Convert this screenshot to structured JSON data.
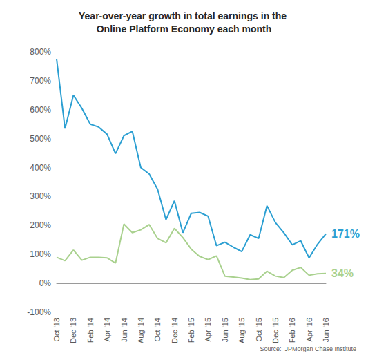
{
  "chart_data": {
    "type": "line",
    "title": "Year-over-year growth in total earnings in the Online Platform Economy each month",
    "source": "Source:  JPMorgan Chase Institute",
    "categories": [
      "Oct '13",
      null,
      "Dec '13",
      null,
      "Feb '14",
      null,
      "Apr '14",
      null,
      "Jun '14",
      null,
      "Aug '14",
      null,
      "Oct '14",
      null,
      "Dec '14",
      null,
      "Feb '15",
      null,
      "Apr '15",
      null,
      "Jun '15",
      null,
      "Aug '15",
      null,
      "Oct '15",
      null,
      "Dec '15",
      null,
      "Feb '16",
      null,
      "Apr '16",
      null,
      "Jun '16"
    ],
    "series": [
      {
        "color": "#2b9fd2",
        "values": [
          775,
          535,
          650,
          605,
          550,
          540,
          515,
          448,
          510,
          525,
          400,
          378,
          325,
          220,
          285,
          175,
          242,
          245,
          232,
          130,
          142,
          125,
          110,
          168,
          155,
          268,
          210,
          175,
          133,
          147,
          88,
          135,
          171
        ],
        "value_labels": [
          null,
          null,
          null,
          null,
          null,
          null,
          null,
          null,
          null,
          null,
          null,
          null,
          null,
          null,
          null,
          null,
          null,
          null,
          null,
          null,
          null,
          null,
          null,
          null,
          null,
          null,
          null,
          null,
          null,
          null,
          null,
          null,
          "171%"
        ]
      },
      {
        "color": "#a9d18e",
        "values": [
          90,
          78,
          115,
          80,
          90,
          90,
          88,
          70,
          205,
          175,
          185,
          203,
          155,
          140,
          190,
          158,
          118,
          93,
          82,
          95,
          25,
          22,
          18,
          13,
          15,
          42,
          25,
          20,
          45,
          55,
          28,
          33,
          34
        ],
        "value_labels": [
          null,
          null,
          null,
          null,
          null,
          null,
          null,
          null,
          null,
          null,
          null,
          null,
          null,
          null,
          null,
          null,
          null,
          null,
          null,
          null,
          null,
          null,
          null,
          null,
          null,
          null,
          null,
          null,
          null,
          null,
          null,
          null,
          "34%"
        ]
      }
    ],
    "ylim": [
      -100,
      800
    ],
    "yticks": [
      {
        "value": -100,
        "label": "-100%"
      },
      {
        "value": 0,
        "label": "0%"
      },
      {
        "value": 100,
        "label": "100%"
      },
      {
        "value": 200,
        "label": "200%"
      },
      {
        "value": 300,
        "label": "300%"
      },
      {
        "value": 400,
        "label": "400%"
      },
      {
        "value": 500,
        "label": "500%"
      },
      {
        "value": 600,
        "label": "600%"
      },
      {
        "value": 700,
        "label": "700%"
      },
      {
        "value": 800,
        "label": "800%"
      }
    ],
    "grid": false,
    "data_labels": true
  }
}
